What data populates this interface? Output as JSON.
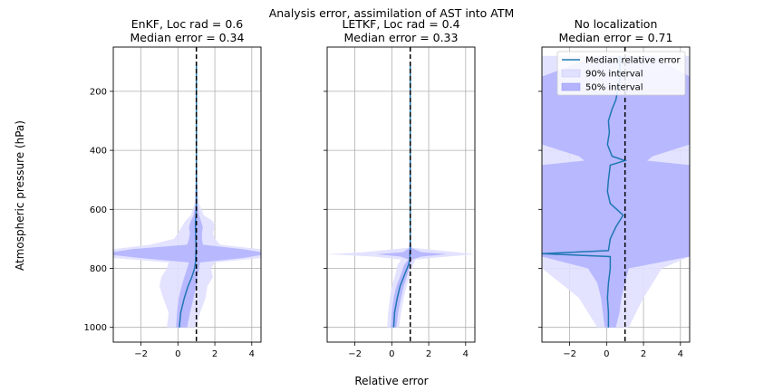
{
  "figure": {
    "suptitle": "Analysis error, assimilation of AST into ATM",
    "xlabel": "Relative error",
    "ylabel": "Atmospheric pressure (hPa)"
  },
  "legend": {
    "entries": [
      {
        "label": "Median relative error",
        "color": "#1f77b4"
      },
      {
        "label": "90% interval",
        "color": "#e0e0ff"
      },
      {
        "label": "50% interval",
        "color": "#b3b3ff"
      }
    ]
  },
  "colors": {
    "median": "#1f77b4",
    "band90": "#e0e0ff",
    "band50": "#b3b3ff",
    "reference": "#000000",
    "grid": "#b0b0b0"
  },
  "chart_data": [
    {
      "type": "area",
      "title_line1": "EnKF, Loc rad = 0.6",
      "title_line2": "Median error = 0.34",
      "xlim": [
        -3.5,
        4.5
      ],
      "ylim": [
        1050,
        50
      ],
      "y_inverted": true,
      "xticks": [
        -2,
        0,
        2,
        4
      ],
      "yticks": [
        200,
        400,
        600,
        800,
        1000
      ],
      "reference_x": 1.0,
      "y": [
        100,
        200,
        300,
        400,
        500,
        580,
        620,
        640,
        660,
        680,
        700,
        720,
        735,
        745,
        755,
        765,
        780,
        800,
        830,
        860,
        900,
        950,
        1000
      ],
      "median": [
        1.0,
        1.0,
        1.0,
        1.0,
        1.0,
        1.0,
        0.98,
        0.95,
        0.95,
        0.96,
        0.97,
        0.98,
        0.98,
        0.97,
        0.97,
        0.96,
        0.95,
        0.9,
        0.75,
        0.55,
        0.35,
        0.15,
        0.08
      ],
      "p25": [
        0.98,
        0.98,
        0.98,
        0.98,
        0.97,
        0.95,
        0.85,
        0.7,
        0.6,
        0.65,
        0.6,
        0.5,
        -2.5,
        -3.5,
        -3.5,
        -2.0,
        0.6,
        0.5,
        0.35,
        0.2,
        0.05,
        -0.05,
        -0.1
      ],
      "p75": [
        1.02,
        1.02,
        1.02,
        1.02,
        1.03,
        1.05,
        1.15,
        1.25,
        1.35,
        1.3,
        1.3,
        1.35,
        3.5,
        4.5,
        4.5,
        3.5,
        1.2,
        1.15,
        1.05,
        1.0,
        0.85,
        0.65,
        0.5
      ],
      "p05": [
        0.97,
        0.97,
        0.97,
        0.97,
        0.95,
        0.9,
        0.7,
        0.4,
        0.2,
        0.0,
        -0.2,
        -1.5,
        -3.5,
        -3.5,
        -3.5,
        -3.5,
        -0.5,
        -0.6,
        -0.9,
        -1.0,
        -0.8,
        -0.5,
        -0.6
      ],
      "p95": [
        1.03,
        1.03,
        1.03,
        1.03,
        1.05,
        1.15,
        1.4,
        1.9,
        2.0,
        1.9,
        2.0,
        2.3,
        4.5,
        4.5,
        4.5,
        4.5,
        2.0,
        1.8,
        1.9,
        1.6,
        1.5,
        1.2,
        1.0
      ]
    },
    {
      "type": "area",
      "title_line1": "LETKF, Loc rad = 0.4",
      "title_line2": "Median error = 0.33",
      "xlim": [
        -3.5,
        4.5
      ],
      "ylim": [
        1050,
        50
      ],
      "y_inverted": true,
      "xticks": [
        -2,
        0,
        2,
        4
      ],
      "yticks": [
        200,
        400,
        600,
        800,
        1000
      ],
      "reference_x": 1.0,
      "y": [
        100,
        200,
        300,
        400,
        500,
        600,
        700,
        730,
        745,
        752,
        760,
        770,
        790,
        820,
        860,
        900,
        950,
        1000
      ],
      "median": [
        1.0,
        1.0,
        1.0,
        1.0,
        1.0,
        1.0,
        1.0,
        1.0,
        0.99,
        0.98,
        0.98,
        0.98,
        0.9,
        0.7,
        0.45,
        0.3,
        0.15,
        0.1
      ],
      "p25": [
        0.99,
        0.99,
        0.99,
        0.99,
        0.99,
        0.99,
        0.99,
        0.97,
        0.6,
        -0.8,
        0.5,
        0.9,
        0.65,
        0.5,
        0.25,
        0.1,
        0.0,
        -0.05
      ],
      "p75": [
        1.01,
        1.01,
        1.01,
        1.01,
        1.01,
        1.01,
        1.01,
        1.05,
        1.6,
        3.0,
        1.6,
        1.1,
        1.0,
        0.85,
        0.65,
        0.5,
        0.35,
        0.25
      ],
      "p05": [
        0.98,
        0.98,
        0.98,
        0.98,
        0.98,
        0.98,
        0.98,
        0.9,
        -1.5,
        -3.5,
        -1.0,
        0.5,
        0.3,
        0.2,
        0.0,
        -0.1,
        -0.2,
        -0.25
      ],
      "p95": [
        1.02,
        1.02,
        1.02,
        1.02,
        1.02,
        1.02,
        1.02,
        1.1,
        3.5,
        4.5,
        3.0,
        1.3,
        1.15,
        1.0,
        0.8,
        0.65,
        0.5,
        0.4
      ]
    },
    {
      "type": "area",
      "title_line1": "No localization",
      "title_line2": "Median error = 0.71",
      "xlim": [
        -3.5,
        4.5
      ],
      "ylim": [
        1050,
        50
      ],
      "y_inverted": true,
      "xticks": [
        -2,
        0,
        2,
        4
      ],
      "yticks": [
        200,
        400,
        600,
        800,
        1000
      ],
      "reference_x": 1.0,
      "y": [
        80,
        150,
        200,
        230,
        260,
        300,
        340,
        380,
        420,
        435,
        450,
        500,
        540,
        580,
        620,
        660,
        700,
        740,
        750,
        760,
        800,
        850,
        900,
        950,
        1000
      ],
      "median": [
        0.7,
        0.75,
        0.6,
        0.5,
        0.3,
        0.1,
        0.15,
        0.05,
        0.3,
        1.0,
        0.2,
        0.1,
        0.05,
        0.2,
        0.9,
        0.5,
        0.2,
        0.1,
        -3.5,
        0.2,
        0.2,
        0.1,
        0.05,
        0.1,
        0.1
      ],
      "p25": [
        -0.5,
        -3.5,
        -3.5,
        -3.5,
        -3.5,
        -3.5,
        -3.5,
        -3.5,
        -1.5,
        -1.2,
        -3.5,
        -3.5,
        -3.5,
        -3.5,
        -3.5,
        -3.5,
        -3.5,
        -3.5,
        -3.5,
        -3.5,
        -1.0,
        -0.5,
        -0.3,
        -0.2,
        -0.1
      ],
      "p75": [
        2.5,
        4.5,
        4.5,
        4.5,
        4.5,
        4.5,
        4.5,
        4.5,
        2.5,
        2.2,
        4.5,
        4.5,
        4.5,
        4.5,
        4.5,
        4.5,
        4.5,
        4.5,
        4.5,
        4.5,
        1.2,
        1.0,
        0.8,
        0.7,
        0.5
      ],
      "p05": [
        -3.5,
        -3.5,
        -3.5,
        -3.5,
        -3.5,
        -3.5,
        -3.5,
        -3.5,
        -3.5,
        -3.5,
        -3.5,
        -3.5,
        -3.5,
        -3.5,
        -3.5,
        -3.5,
        -3.5,
        -3.5,
        -3.5,
        -3.5,
        -3.5,
        -2.5,
        -1.5,
        -1.0,
        -0.5
      ],
      "p95": [
        4.5,
        4.5,
        4.5,
        4.5,
        4.5,
        4.5,
        4.5,
        4.5,
        4.5,
        4.5,
        4.5,
        4.5,
        4.5,
        4.5,
        4.5,
        4.5,
        4.5,
        4.5,
        4.5,
        4.5,
        3.0,
        2.5,
        2.0,
        1.6,
        1.2
      ]
    }
  ]
}
